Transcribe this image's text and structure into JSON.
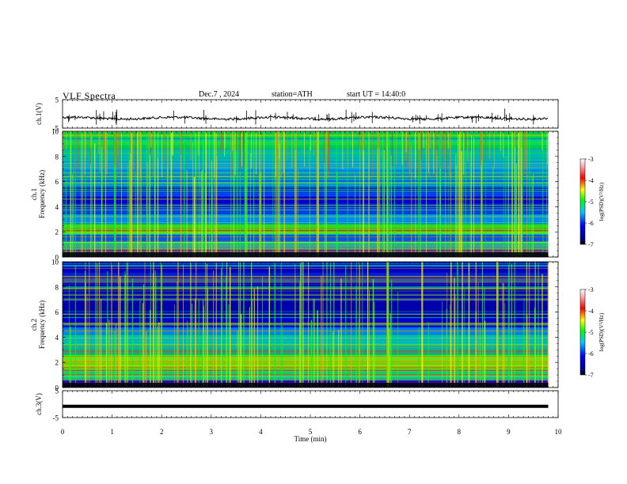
{
  "header": {
    "title": "VLF Spectra",
    "date": "Dec.7 , 2024",
    "station": "station=ATH",
    "start": "start UT =  14:40:0"
  },
  "chart_data": [
    {
      "type": "line",
      "panel": "ch1-waveform",
      "ylabel": "ch.1(V)",
      "yticks": [
        "5",
        "-5"
      ],
      "ylim": [
        -5,
        5
      ],
      "xlim": [
        0,
        10
      ],
      "trace_level": -1.5,
      "trace_end_min": 9.8
    },
    {
      "type": "heatmap",
      "panel": "ch1-spectrogram",
      "ylabel": "ch.1\nFrequency (kHz)",
      "yticks": [
        "0",
        "2",
        "4",
        "6",
        "8",
        "10"
      ],
      "ylim": [
        0,
        10
      ],
      "xlim": [
        0,
        10
      ],
      "data_end_min": 9.8,
      "colorbar": {
        "label": "log(PSD)(V²/Hz)",
        "ticks": [
          "-3",
          "-4",
          "-5",
          "-6",
          "-7"
        ],
        "range": [
          -7,
          -3
        ]
      }
    },
    {
      "type": "heatmap",
      "panel": "ch2-spectrogram",
      "ylabel": "ch.2\nFrequency (kHz)",
      "yticks": [
        "0",
        "2",
        "4",
        "6",
        "8",
        "10"
      ],
      "ylim": [
        0,
        10
      ],
      "xlim": [
        0,
        10
      ],
      "data_end_min": 9.8,
      "colorbar": {
        "label": "log(PSD)(V²/Hz)",
        "ticks": [
          "-3",
          "-4",
          "-5",
          "-6",
          "-7"
        ],
        "range": [
          -7,
          -3
        ]
      }
    },
    {
      "type": "line",
      "panel": "ch3-waveform",
      "ylabel": "ch.3(V)",
      "yticks": [
        "5",
        "-5"
      ],
      "ylim": [
        -5,
        5
      ],
      "xlim": [
        0,
        10
      ],
      "trace_level": -0.8,
      "trace_end_min": 9.8
    }
  ],
  "xaxis": {
    "label": "Time (min)",
    "ticks": [
      "0",
      "1",
      "2",
      "3",
      "4",
      "5",
      "6",
      "7",
      "8",
      "9",
      "10"
    ]
  }
}
